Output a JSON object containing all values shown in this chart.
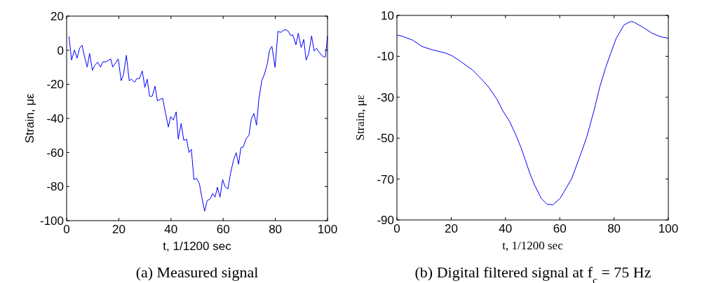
{
  "chart_data": [
    {
      "type": "line",
      "title": "(a) Measured signal",
      "xlabel": "t, 1/1200 sec",
      "ylabel": "Strain, με",
      "xlim": [
        0,
        100
      ],
      "ylim": [
        -100,
        20
      ],
      "xticks": [
        0,
        20,
        40,
        60,
        80,
        100
      ],
      "yticks": [
        -100,
        -80,
        -60,
        -40,
        -20,
        0,
        20
      ],
      "grid": false,
      "x": [
        0.9,
        1.9,
        3,
        4,
        5,
        5.9,
        7,
        7.9,
        8.8,
        9.9,
        10.8,
        11.9,
        13,
        13.9,
        15.1,
        16.9,
        17.7,
        19.8,
        20.9,
        21.8,
        22.9,
        24,
        24.9,
        26,
        26.9,
        27.9,
        29,
        30,
        30.9,
        31.8,
        32.8,
        33.9,
        34.8,
        36.8,
        37.9,
        39,
        39.9,
        40.9,
        42,
        42.8,
        43.9,
        44.9,
        46,
        46.9,
        47.8,
        48.8,
        49.8,
        50.9,
        51.8,
        52.9,
        53.9,
        55,
        56,
        56.9,
        57.8,
        58.8,
        59.8,
        60.7,
        61.8,
        62.8,
        63.9,
        65,
        65.9,
        66.8,
        67.7,
        68.8,
        69.9,
        70.8,
        71.8,
        72.8,
        73.7,
        74.8,
        75.8,
        76.9,
        77.8,
        78.7,
        79.9,
        81,
        82,
        82.9,
        83.9,
        85,
        85.9,
        86.7,
        87.9,
        88.8,
        89.9,
        90.9,
        91.8,
        92.8,
        93.9,
        94.9,
        95.8,
        96.8,
        97.9,
        98.8,
        99.2,
        100
      ],
      "series": [
        {
          "color": "#0000ff",
          "values": [
            8.1,
            -5.8,
            0.1,
            -4.7,
            1.2,
            2.9,
            -4.7,
            -9.9,
            -1.9,
            -11.8,
            -8.9,
            -7,
            -9.9,
            -6.8,
            -6.8,
            -5.1,
            -9.9,
            -5.1,
            -17.9,
            -14.2,
            -3,
            -17.9,
            -17,
            -18.8,
            -16.7,
            -16.7,
            -12.2,
            -21.8,
            -17,
            -27,
            -27,
            -21.1,
            -29.7,
            -28.1,
            -36.8,
            -45.1,
            -38.9,
            -41,
            -36.2,
            -52.2,
            -43,
            -52.9,
            -52.2,
            -60.1,
            -58.1,
            -75.9,
            -75.2,
            -78.2,
            -86.2,
            -94.4,
            -88.2,
            -87.3,
            -84.1,
            -86.2,
            -80.4,
            -86.2,
            -75.9,
            -80,
            -81.4,
            -72.5,
            -64.9,
            -60.1,
            -66.9,
            -57.1,
            -56.8,
            -51.9,
            -49.9,
            -40.3,
            -37.1,
            -44,
            -28.6,
            -17.9,
            -14.2,
            -8.1,
            0.1,
            2.2,
            -10.1,
            11.1,
            10.4,
            11.4,
            12.1,
            11.1,
            8.6,
            9,
            3.2,
            10,
            1.5,
            6.3,
            -5.8,
            -1.9,
            8.4,
            -0.5,
            1.1,
            -1.2,
            -3.3,
            -4,
            -4,
            8.4
          ]
        }
      ]
    },
    {
      "type": "line",
      "title": "(b) Digital filtered signal at f$_{c}$ = 75 Hz",
      "xlabel": "t, 1/1200 sec",
      "ylabel": "Strain, με",
      "xlim": [
        0,
        100
      ],
      "ylim": [
        -90,
        10
      ],
      "xticks": [
        0,
        20,
        40,
        60,
        80,
        100
      ],
      "yticks": [
        -90,
        -70,
        -50,
        -30,
        -10,
        10
      ],
      "grid": false,
      "x": [
        0,
        2,
        5.8,
        9.3,
        12.7,
        17.9,
        20.4,
        23,
        27.8,
        31.6,
        33.8,
        36.8,
        39,
        41.5,
        43.7,
        45.8,
        48.9,
        50.6,
        53.2,
        55.3,
        57.5,
        60.1,
        64.4,
        67.9,
        70,
        72.6,
        74.7,
        76.9,
        78.6,
        80.8,
        83.7,
        86.1,
        87.2,
        91,
        94,
        97.1,
        100
      ],
      "series": [
        {
          "color": "#0000ff",
          "values": [
            0.4,
            -0.2,
            -2.1,
            -5.2,
            -6.7,
            -8.4,
            -9.8,
            -12.1,
            -16.6,
            -21.8,
            -25,
            -30.9,
            -36.6,
            -41.8,
            -48.1,
            -54.9,
            -66.9,
            -72.6,
            -79.5,
            -82.3,
            -82.6,
            -79.5,
            -69.8,
            -57.2,
            -49.2,
            -36.6,
            -25.2,
            -15.5,
            -9.2,
            -1.2,
            5.4,
            7,
            6.8,
            3.9,
            1.3,
            -0.4,
            -1.2
          ]
        }
      ]
    }
  ]
}
